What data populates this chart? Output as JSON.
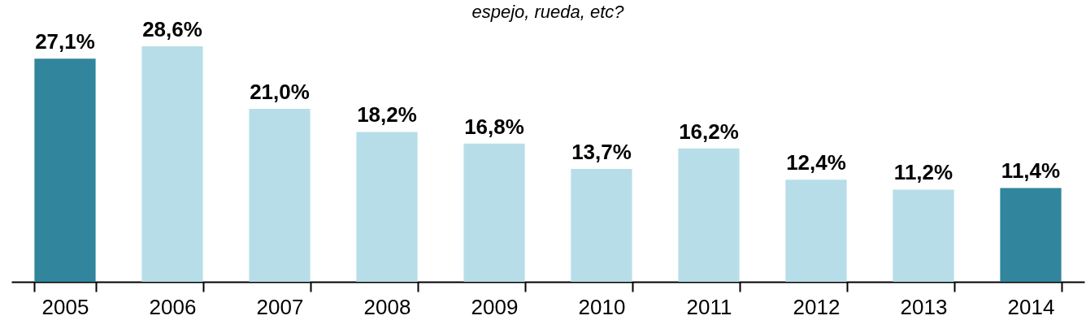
{
  "chart_data": {
    "type": "bar",
    "subtitle": "espejo, rueda, etc?",
    "categories": [
      "2005",
      "2006",
      "2007",
      "2008",
      "2009",
      "2010",
      "2011",
      "2012",
      "2013",
      "2014"
    ],
    "values": [
      27.1,
      28.6,
      21.0,
      18.2,
      16.8,
      13.7,
      16.2,
      12.4,
      11.2,
      11.4
    ],
    "colors": [
      "#31859c",
      "#b7dee8",
      "#b7dee8",
      "#b7dee8",
      "#b7dee8",
      "#b7dee8",
      "#b7dee8",
      "#b7dee8",
      "#b7dee8",
      "#31859c"
    ],
    "value_labels": [
      "27,1%",
      "28,6%",
      "21,0%",
      "18,2%",
      "16,8%",
      "13,7%",
      "16,2%",
      "12,4%",
      "11,2%",
      "11,4%"
    ],
    "grid": false
  }
}
